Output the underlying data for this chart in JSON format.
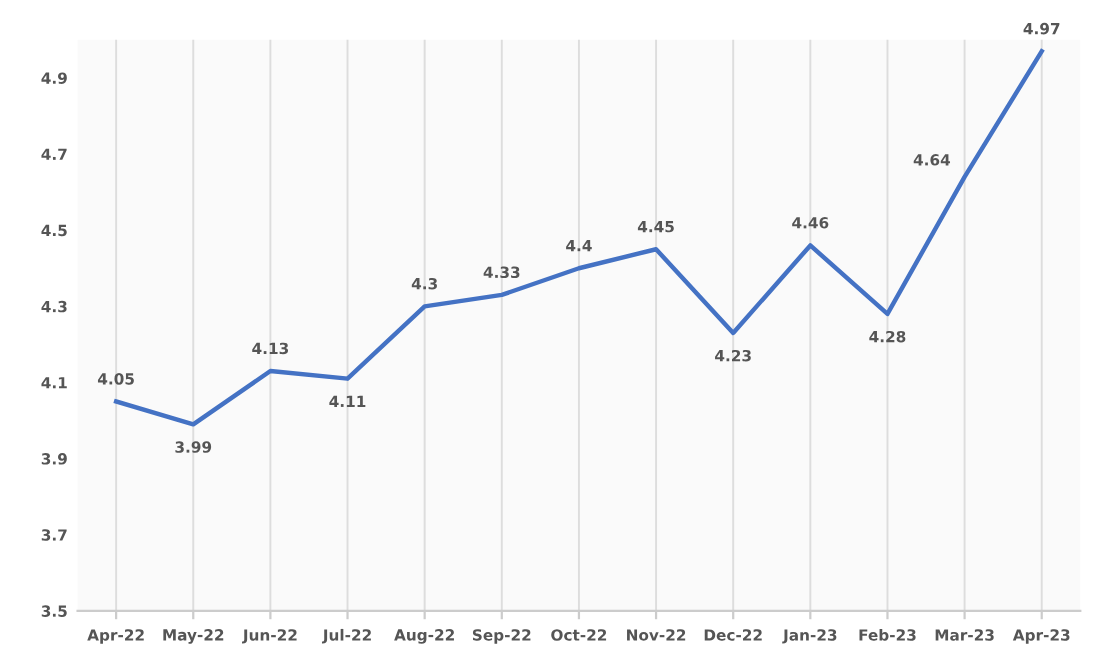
{
  "chart_data": {
    "type": "line",
    "categories": [
      "Apr-22",
      "May-22",
      "Jun-22",
      "Jul-22",
      "Aug-22",
      "Sep-22",
      "Oct-22",
      "Nov-22",
      "Dec-22",
      "Jan-23",
      "Feb-23",
      "Mar-23",
      "Apr-23"
    ],
    "series": [
      {
        "color": "#4472c4",
        "values": [
          4.05,
          3.99,
          4.13,
          4.11,
          4.3,
          4.33,
          4.4,
          4.45,
          4.23,
          4.46,
          4.28,
          4.64,
          4.97
        ]
      }
    ],
    "ylim": [
      3.5,
      5.0
    ],
    "yticks": [
      3.5,
      3.7,
      3.9,
      4.1,
      4.3,
      4.5,
      4.7,
      4.9
    ],
    "grid": "x",
    "data_labels": true,
    "marker": "none",
    "line_style": "solid"
  }
}
